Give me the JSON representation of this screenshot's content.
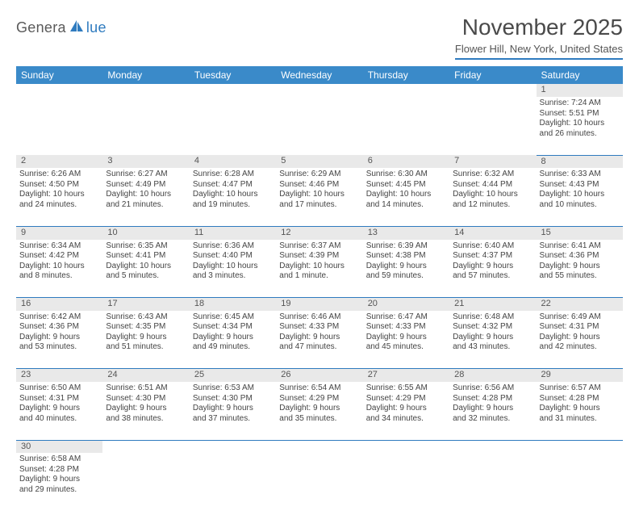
{
  "logo": {
    "text1": "Genera",
    "text2": "lue",
    "icon_color": "#2f7bbf"
  },
  "title": "November 2025",
  "location": "Flower Hill, New York, United States",
  "colors": {
    "header_bg": "#3a8ac9",
    "header_fg": "#ffffff",
    "daynum_bg": "#e9e9e9",
    "rule": "#2f7bbf",
    "text": "#444444"
  },
  "days_of_week": [
    "Sunday",
    "Monday",
    "Tuesday",
    "Wednesday",
    "Thursday",
    "Friday",
    "Saturday"
  ],
  "weeks": [
    [
      null,
      null,
      null,
      null,
      null,
      null,
      {
        "n": "1",
        "sr": "Sunrise: 7:24 AM",
        "ss": "Sunset: 5:51 PM",
        "dl1": "Daylight: 10 hours",
        "dl2": "and 26 minutes."
      }
    ],
    [
      {
        "n": "2",
        "sr": "Sunrise: 6:26 AM",
        "ss": "Sunset: 4:50 PM",
        "dl1": "Daylight: 10 hours",
        "dl2": "and 24 minutes."
      },
      {
        "n": "3",
        "sr": "Sunrise: 6:27 AM",
        "ss": "Sunset: 4:49 PM",
        "dl1": "Daylight: 10 hours",
        "dl2": "and 21 minutes."
      },
      {
        "n": "4",
        "sr": "Sunrise: 6:28 AM",
        "ss": "Sunset: 4:47 PM",
        "dl1": "Daylight: 10 hours",
        "dl2": "and 19 minutes."
      },
      {
        "n": "5",
        "sr": "Sunrise: 6:29 AM",
        "ss": "Sunset: 4:46 PM",
        "dl1": "Daylight: 10 hours",
        "dl2": "and 17 minutes."
      },
      {
        "n": "6",
        "sr": "Sunrise: 6:30 AM",
        "ss": "Sunset: 4:45 PM",
        "dl1": "Daylight: 10 hours",
        "dl2": "and 14 minutes."
      },
      {
        "n": "7",
        "sr": "Sunrise: 6:32 AM",
        "ss": "Sunset: 4:44 PM",
        "dl1": "Daylight: 10 hours",
        "dl2": "and 12 minutes."
      },
      {
        "n": "8",
        "sr": "Sunrise: 6:33 AM",
        "ss": "Sunset: 4:43 PM",
        "dl1": "Daylight: 10 hours",
        "dl2": "and 10 minutes."
      }
    ],
    [
      {
        "n": "9",
        "sr": "Sunrise: 6:34 AM",
        "ss": "Sunset: 4:42 PM",
        "dl1": "Daylight: 10 hours",
        "dl2": "and 8 minutes."
      },
      {
        "n": "10",
        "sr": "Sunrise: 6:35 AM",
        "ss": "Sunset: 4:41 PM",
        "dl1": "Daylight: 10 hours",
        "dl2": "and 5 minutes."
      },
      {
        "n": "11",
        "sr": "Sunrise: 6:36 AM",
        "ss": "Sunset: 4:40 PM",
        "dl1": "Daylight: 10 hours",
        "dl2": "and 3 minutes."
      },
      {
        "n": "12",
        "sr": "Sunrise: 6:37 AM",
        "ss": "Sunset: 4:39 PM",
        "dl1": "Daylight: 10 hours",
        "dl2": "and 1 minute."
      },
      {
        "n": "13",
        "sr": "Sunrise: 6:39 AM",
        "ss": "Sunset: 4:38 PM",
        "dl1": "Daylight: 9 hours",
        "dl2": "and 59 minutes."
      },
      {
        "n": "14",
        "sr": "Sunrise: 6:40 AM",
        "ss": "Sunset: 4:37 PM",
        "dl1": "Daylight: 9 hours",
        "dl2": "and 57 minutes."
      },
      {
        "n": "15",
        "sr": "Sunrise: 6:41 AM",
        "ss": "Sunset: 4:36 PM",
        "dl1": "Daylight: 9 hours",
        "dl2": "and 55 minutes."
      }
    ],
    [
      {
        "n": "16",
        "sr": "Sunrise: 6:42 AM",
        "ss": "Sunset: 4:36 PM",
        "dl1": "Daylight: 9 hours",
        "dl2": "and 53 minutes."
      },
      {
        "n": "17",
        "sr": "Sunrise: 6:43 AM",
        "ss": "Sunset: 4:35 PM",
        "dl1": "Daylight: 9 hours",
        "dl2": "and 51 minutes."
      },
      {
        "n": "18",
        "sr": "Sunrise: 6:45 AM",
        "ss": "Sunset: 4:34 PM",
        "dl1": "Daylight: 9 hours",
        "dl2": "and 49 minutes."
      },
      {
        "n": "19",
        "sr": "Sunrise: 6:46 AM",
        "ss": "Sunset: 4:33 PM",
        "dl1": "Daylight: 9 hours",
        "dl2": "and 47 minutes."
      },
      {
        "n": "20",
        "sr": "Sunrise: 6:47 AM",
        "ss": "Sunset: 4:33 PM",
        "dl1": "Daylight: 9 hours",
        "dl2": "and 45 minutes."
      },
      {
        "n": "21",
        "sr": "Sunrise: 6:48 AM",
        "ss": "Sunset: 4:32 PM",
        "dl1": "Daylight: 9 hours",
        "dl2": "and 43 minutes."
      },
      {
        "n": "22",
        "sr": "Sunrise: 6:49 AM",
        "ss": "Sunset: 4:31 PM",
        "dl1": "Daylight: 9 hours",
        "dl2": "and 42 minutes."
      }
    ],
    [
      {
        "n": "23",
        "sr": "Sunrise: 6:50 AM",
        "ss": "Sunset: 4:31 PM",
        "dl1": "Daylight: 9 hours",
        "dl2": "and 40 minutes."
      },
      {
        "n": "24",
        "sr": "Sunrise: 6:51 AM",
        "ss": "Sunset: 4:30 PM",
        "dl1": "Daylight: 9 hours",
        "dl2": "and 38 minutes."
      },
      {
        "n": "25",
        "sr": "Sunrise: 6:53 AM",
        "ss": "Sunset: 4:30 PM",
        "dl1": "Daylight: 9 hours",
        "dl2": "and 37 minutes."
      },
      {
        "n": "26",
        "sr": "Sunrise: 6:54 AM",
        "ss": "Sunset: 4:29 PM",
        "dl1": "Daylight: 9 hours",
        "dl2": "and 35 minutes."
      },
      {
        "n": "27",
        "sr": "Sunrise: 6:55 AM",
        "ss": "Sunset: 4:29 PM",
        "dl1": "Daylight: 9 hours",
        "dl2": "and 34 minutes."
      },
      {
        "n": "28",
        "sr": "Sunrise: 6:56 AM",
        "ss": "Sunset: 4:28 PM",
        "dl1": "Daylight: 9 hours",
        "dl2": "and 32 minutes."
      },
      {
        "n": "29",
        "sr": "Sunrise: 6:57 AM",
        "ss": "Sunset: 4:28 PM",
        "dl1": "Daylight: 9 hours",
        "dl2": "and 31 minutes."
      }
    ],
    [
      {
        "n": "30",
        "sr": "Sunrise: 6:58 AM",
        "ss": "Sunset: 4:28 PM",
        "dl1": "Daylight: 9 hours",
        "dl2": "and 29 minutes."
      },
      null,
      null,
      null,
      null,
      null,
      null
    ]
  ]
}
